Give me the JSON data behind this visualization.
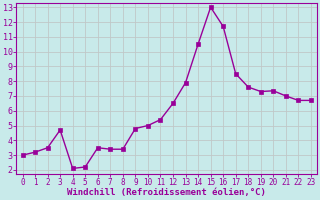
{
  "x_data": [
    0,
    1,
    2,
    3,
    4,
    5,
    6,
    7,
    8,
    9,
    10,
    11,
    12,
    13,
    14,
    15,
    16,
    17,
    18,
    19,
    20,
    21,
    22,
    23
  ],
  "y_data": [
    3.0,
    3.2,
    3.5,
    4.7,
    2.1,
    2.2,
    3.5,
    3.4,
    3.4,
    4.8,
    5.0,
    5.4,
    6.5,
    7.9,
    10.5,
    13.0,
    11.7,
    8.5,
    7.6,
    7.3,
    7.35,
    7.0,
    6.7,
    6.7
  ],
  "line_color": "#990099",
  "marker_color": "#990099",
  "bg_color": "#c8eaea",
  "grid_color": "#c0c8c8",
  "xlabel": "Windchill (Refroidissement éolien,°C)",
  "xlabel_color": "#990099",
  "tick_color": "#990099",
  "spine_color": "#990099",
  "ylim_min": 1.7,
  "ylim_max": 13.3,
  "xlim_min": -0.5,
  "xlim_max": 23.5,
  "yticks": [
    2,
    3,
    4,
    5,
    6,
    7,
    8,
    9,
    10,
    11,
    12,
    13
  ],
  "xticks": [
    0,
    1,
    2,
    3,
    4,
    5,
    6,
    7,
    8,
    9,
    10,
    11,
    12,
    13,
    14,
    15,
    16,
    17,
    18,
    19,
    20,
    21,
    22,
    23
  ],
  "xlabel_fontsize": 6.5,
  "tick_fontsize_x": 5.5,
  "tick_fontsize_y": 6.0,
  "linewidth": 1.0,
  "markersize": 2.5
}
